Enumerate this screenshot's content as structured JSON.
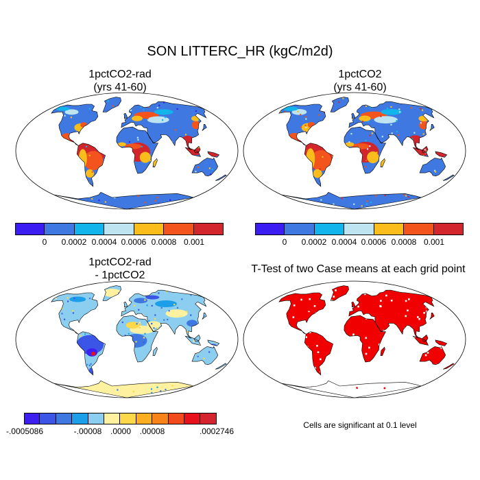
{
  "title": "SON LITTERC_HR (kgC/m2d)",
  "panels": [
    {
      "title_line1": "1pctCO2-rad",
      "title_line2": "(yrs 41-60)"
    },
    {
      "title_line1": "1pctCO2",
      "title_line2": "(yrs 41-60)"
    },
    {
      "title_line1": "1pctCO2-rad",
      "title_line2": "- 1pctCO2"
    },
    {
      "title_line1": "T-Test of two Case means at each grid point",
      "title_line2": ""
    }
  ],
  "colorbars": {
    "absolute": {
      "colors": [
        "#3b1cf2",
        "#3f78e0",
        "#12b4ec",
        "#bde4f0",
        "#fbbd1b",
        "#f3541e",
        "#d2262c"
      ],
      "labels": [
        "0",
        "0.0002",
        "0.0004",
        "0.0006",
        "0.0008",
        "0.001"
      ]
    },
    "difference": {
      "colors": [
        "#3d1ff0",
        "#3b55e6",
        "#3f78e0",
        "#1c9ee8",
        "#8ccef0",
        "#fff1a0",
        "#fdd84a",
        "#fbae22",
        "#f7831a",
        "#f34a1c",
        "#e8101a",
        "#d42430"
      ],
      "labels": [
        "-.0005086",
        "-.00008",
        ".0000",
        ".00008",
        ".0002746"
      ]
    }
  },
  "significance_note": "Cells are significant at 0.1 level",
  "map_colors": {
    "ocean": "#ffffff",
    "antarctica_abs": "#3f78e0",
    "antarctica_diff": "#fff1a0",
    "significant": "#f00000"
  }
}
